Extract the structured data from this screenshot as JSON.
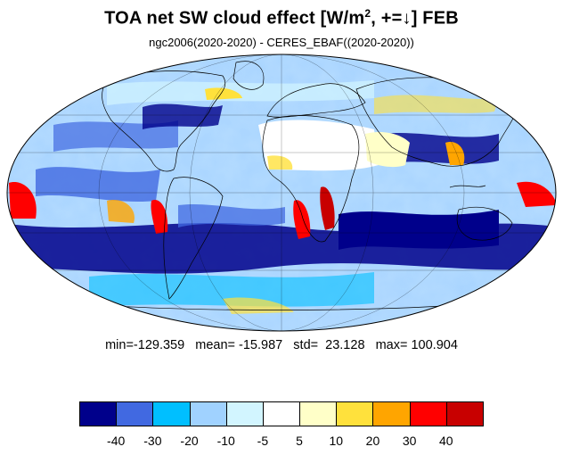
{
  "title": {
    "main": "TOA net SW cloud effect [W/m",
    "sup": "2",
    "rest": ", +=↓]  FEB"
  },
  "subtitle": "ngc2006(2020-2020) - CERES_EBAF((2020-2020))",
  "stats": "min=-129.359   mean= -15.987   std=  23.128   max= 100.904",
  "colorbar": {
    "colors": [
      "#00008b",
      "#4169e1",
      "#00bfff",
      "#a0d2ff",
      "#d2f5ff",
      "#ffffff",
      "#ffffc8",
      "#ffe13c",
      "#ffa500",
      "#ff0000",
      "#c80000"
    ],
    "labels": [
      "-40",
      "-30",
      "-20",
      "-10",
      "-5",
      "5",
      "10",
      "20",
      "30",
      "40"
    ]
  },
  "map": {
    "projection": "mollweide",
    "background_field_color": "#a8d4ff",
    "coastline_color": "#000000"
  }
}
